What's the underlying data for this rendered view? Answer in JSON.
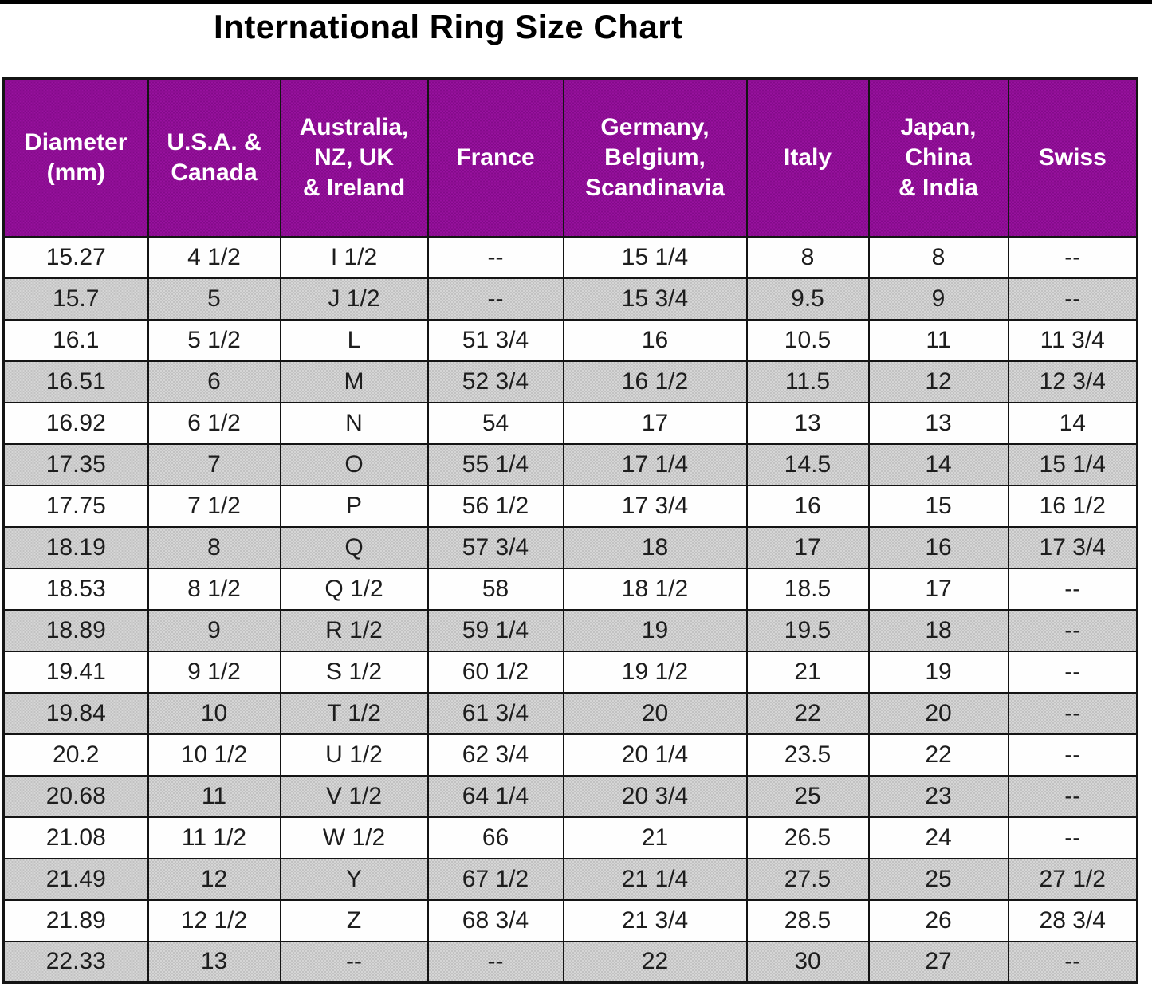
{
  "title": "International Ring Size Chart",
  "colors": {
    "top_bar": "#000000",
    "title_color": "#000000",
    "header_bg": "#8d0e94",
    "header_text": "#ffffff",
    "row_bg": "#ffffff",
    "alt_row_bg": "#cccccc",
    "border": "#141414"
  },
  "chart_data": {
    "type": "table",
    "title": "International Ring Size Chart",
    "columns": [
      "Diameter (mm)",
      "U.S.A. & Canada",
      "Australia, NZ, UK & Ireland",
      "France",
      "Germany, Belgium, Scandinavia",
      "Italy",
      "Japan, China & India",
      "Swiss"
    ],
    "column_display": [
      "Diameter\n(mm)",
      "U.S.A. &\nCanada",
      "Australia,\nNZ, UK\n& Ireland",
      "France",
      "Germany,\nBelgium,\nScandinavia",
      "Italy",
      "Japan,\nChina\n& India",
      "Swiss"
    ],
    "layout": {
      "row_shading": "alternating, first row white, second gray",
      "grid": "black 2px lines, 3px outer border",
      "header_style": "purple background, white bold text"
    },
    "rows": [
      [
        "15.27",
        "4 1/2",
        "I 1/2",
        "--",
        "15 1/4",
        "8",
        "8",
        "--"
      ],
      [
        "15.7",
        "5",
        "J 1/2",
        "--",
        "15 3/4",
        "9.5",
        "9",
        "--"
      ],
      [
        "16.1",
        "5 1/2",
        "L",
        "51 3/4",
        "16",
        "10.5",
        "11",
        "11 3/4"
      ],
      [
        "16.51",
        "6",
        "M",
        "52 3/4",
        "16 1/2",
        "11.5",
        "12",
        "12 3/4"
      ],
      [
        "16.92",
        "6 1/2",
        "N",
        "54",
        "17",
        "13",
        "13",
        "14"
      ],
      [
        "17.35",
        "7",
        "O",
        "55 1/4",
        "17 1/4",
        "14.5",
        "14",
        "15 1/4"
      ],
      [
        "17.75",
        "7 1/2",
        "P",
        "56 1/2",
        "17 3/4",
        "16",
        "15",
        "16 1/2"
      ],
      [
        "18.19",
        "8",
        "Q",
        "57 3/4",
        "18",
        "17",
        "16",
        "17 3/4"
      ],
      [
        "18.53",
        "8 1/2",
        "Q 1/2",
        "58",
        "18 1/2",
        "18.5",
        "17",
        "--"
      ],
      [
        "18.89",
        "9",
        "R 1/2",
        "59 1/4",
        "19",
        "19.5",
        "18",
        "--"
      ],
      [
        "19.41",
        "9 1/2",
        "S 1/2",
        "60 1/2",
        "19 1/2",
        "21",
        "19",
        "--"
      ],
      [
        "19.84",
        "10",
        "T 1/2",
        "61 3/4",
        "20",
        "22",
        "20",
        "--"
      ],
      [
        "20.2",
        "10 1/2",
        "U 1/2",
        "62 3/4",
        "20 1/4",
        "23.5",
        "22",
        "--"
      ],
      [
        "20.68",
        "11",
        "V 1/2",
        "64 1/4",
        "20 3/4",
        "25",
        "23",
        "--"
      ],
      [
        "21.08",
        "11 1/2",
        "W 1/2",
        "66",
        "21",
        "26.5",
        "24",
        "--"
      ],
      [
        "21.49",
        "12",
        "Y",
        "67 1/2",
        "21 1/4",
        "27.5",
        "25",
        "27 1/2"
      ],
      [
        "21.89",
        "12 1/2",
        "Z",
        "68 3/4",
        "21 3/4",
        "28.5",
        "26",
        "28 3/4"
      ],
      [
        "22.33",
        "13",
        "--",
        "--",
        "22",
        "30",
        "27",
        "--"
      ]
    ]
  }
}
